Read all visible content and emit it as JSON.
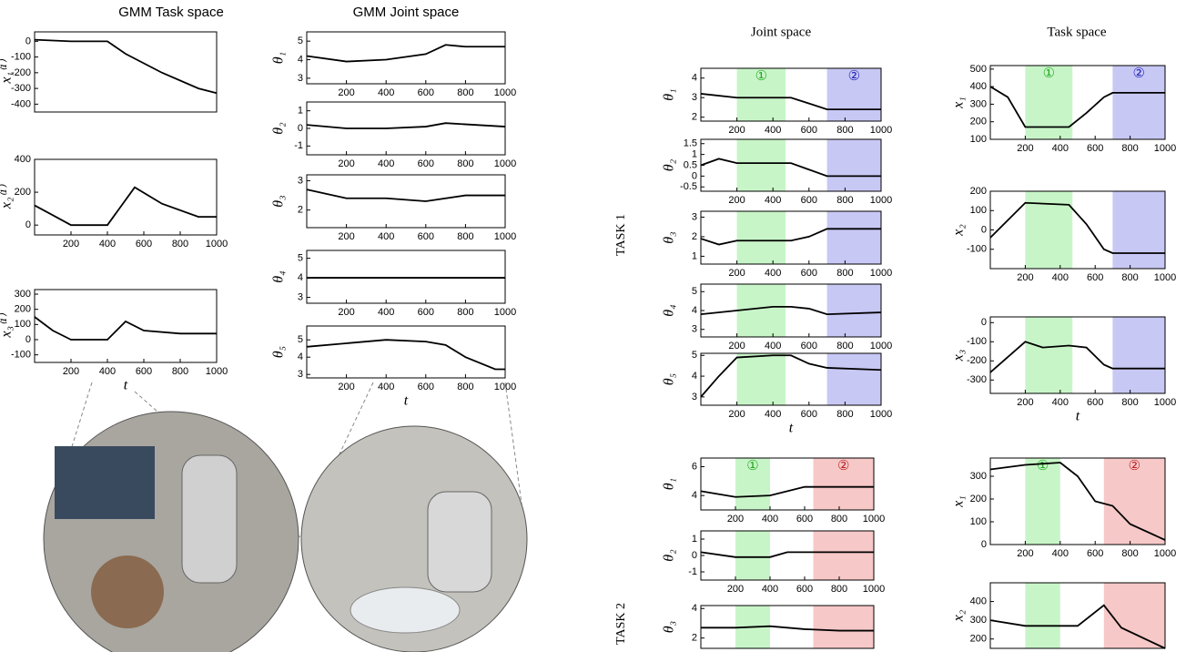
{
  "headings": [
    "GMM Task space",
    "GMM Joint space",
    "Joint space",
    "Task space",
    "TASK 1",
    "TASK 2"
  ],
  "chart_data": [
    {
      "type": "line",
      "ylabel": "x₁⁽¹⁾",
      "xlim": [
        0,
        1000
      ],
      "ylim": [
        -450,
        60
      ],
      "xticks": [],
      "yticks": [
        0,
        -100,
        -200,
        -300,
        -400
      ],
      "series": [
        {
          "color": "#000000",
          "x": [
            0,
            200,
            400,
            500,
            700,
            900,
            1000
          ],
          "values": [
            10,
            0,
            0,
            -80,
            -200,
            -300,
            -330
          ]
        }
      ]
    },
    {
      "type": "line",
      "ylabel": "x₂⁽¹⁾",
      "xlim": [
        0,
        1000
      ],
      "ylim": [
        -60,
        400
      ],
      "xticks": [
        200,
        400,
        600,
        800,
        1000
      ],
      "yticks": [
        0,
        200,
        400
      ],
      "series": [
        {
          "color": "#000000",
          "x": [
            0,
            100,
            200,
            400,
            550,
            700,
            900,
            1000
          ],
          "values": [
            120,
            60,
            0,
            0,
            230,
            130,
            50,
            50
          ]
        }
      ]
    },
    {
      "type": "line",
      "ylabel": "x₃⁽¹⁾",
      "xlabel": "t",
      "xlim": [
        0,
        1000
      ],
      "ylim": [
        -150,
        330
      ],
      "xticks": [
        200,
        400,
        600,
        800,
        1000
      ],
      "yticks": [
        -100,
        0,
        100,
        200,
        300
      ],
      "series": [
        {
          "color": "#000000",
          "x": [
            0,
            100,
            200,
            400,
            500,
            600,
            800,
            1000
          ],
          "values": [
            150,
            60,
            0,
            0,
            120,
            60,
            40,
            40
          ]
        }
      ]
    },
    {
      "type": "line",
      "ylabel": "θ₁",
      "xlim": [
        0,
        1000
      ],
      "ylim": [
        2.7,
        5.5
      ],
      "xticks": [
        200,
        400,
        600,
        800,
        1000
      ],
      "yticks": [
        3,
        4,
        5
      ],
      "series": [
        {
          "color": "#000000",
          "x": [
            0,
            200,
            400,
            600,
            700,
            800,
            1000
          ],
          "values": [
            4.2,
            3.9,
            4.0,
            4.3,
            4.8,
            4.7,
            4.7
          ]
        }
      ]
    },
    {
      "type": "line",
      "ylabel": "θ₂",
      "xlim": [
        0,
        1000
      ],
      "ylim": [
        -1.5,
        1.5
      ],
      "xticks": [
        200,
        400,
        600,
        800,
        1000
      ],
      "yticks": [
        -1,
        0,
        1
      ],
      "series": [
        {
          "color": "#000000",
          "x": [
            0,
            200,
            400,
            600,
            700,
            1000
          ],
          "values": [
            0.2,
            0.0,
            0.0,
            0.1,
            0.3,
            0.1
          ]
        }
      ]
    },
    {
      "type": "line",
      "ylabel": "θ₃",
      "xlim": [
        0,
        1000
      ],
      "ylim": [
        1.4,
        3.2
      ],
      "xticks": [
        200,
        400,
        600,
        800,
        1000
      ],
      "yticks": [
        2,
        3
      ],
      "series": [
        {
          "color": "#000000",
          "x": [
            0,
            200,
            400,
            600,
            800,
            1000
          ],
          "values": [
            2.7,
            2.4,
            2.4,
            2.3,
            2.5,
            2.5
          ]
        }
      ]
    },
    {
      "type": "line",
      "ylabel": "θ₄",
      "xlim": [
        0,
        1000
      ],
      "ylim": [
        2.7,
        5.4
      ],
      "xticks": [
        200,
        400,
        600,
        800,
        1000
      ],
      "yticks": [
        3,
        4,
        5
      ],
      "series": [
        {
          "color": "#000000",
          "x": [
            0,
            200,
            400,
            600,
            800,
            1000
          ],
          "values": [
            4.0,
            4.0,
            4.0,
            4.0,
            4.0,
            4.0
          ]
        }
      ]
    },
    {
      "type": "line",
      "ylabel": "θ₅",
      "xlabel": "t",
      "xlim": [
        0,
        1000
      ],
      "ylim": [
        2.8,
        5.8
      ],
      "xticks": [
        200,
        400,
        600,
        800,
        1000
      ],
      "yticks": [
        3,
        4,
        5
      ],
      "series": [
        {
          "color": "#000000",
          "x": [
            0,
            200,
            400,
            600,
            700,
            800,
            950,
            1000
          ],
          "values": [
            4.6,
            4.8,
            5.0,
            4.9,
            4.7,
            4.0,
            3.3,
            3.3
          ]
        }
      ]
    },
    {
      "type": "line",
      "ylabel": "θ₁",
      "xlim": [
        0,
        1000
      ],
      "ylim": [
        1.8,
        4.5
      ],
      "xticks": [
        200,
        400,
        600,
        800,
        1000
      ],
      "yticks": [
        2,
        3,
        4
      ],
      "regions": [
        {
          "x": [
            200,
            470
          ],
          "color": "#c8f5c8",
          "label": "①",
          "label_color": "#22aa22"
        },
        {
          "x": [
            700,
            1000
          ],
          "color": "#c8c8f5",
          "label": "②",
          "label_color": "#2222bb"
        }
      ],
      "series": [
        {
          "color": "#000000",
          "x": [
            0,
            200,
            400,
            500,
            600,
            700,
            1000
          ],
          "values": [
            3.2,
            3.0,
            3.0,
            3.0,
            2.7,
            2.4,
            2.4
          ]
        }
      ]
    },
    {
      "type": "line",
      "ylabel": "θ₂",
      "xlim": [
        0,
        1000
      ],
      "ylim": [
        -0.7,
        1.7
      ],
      "xticks": [
        200,
        400,
        600,
        800,
        1000
      ],
      "yticks": [
        -0.5,
        0,
        0.5,
        1,
        1.5
      ],
      "regions": [
        {
          "x": [
            200,
            470
          ],
          "color": "#c8f5c8"
        },
        {
          "x": [
            700,
            1000
          ],
          "color": "#c8c8f5"
        }
      ],
      "series": [
        {
          "color": "#000000",
          "x": [
            0,
            100,
            200,
            400,
            500,
            600,
            700,
            1000
          ],
          "values": [
            0.5,
            0.8,
            0.6,
            0.6,
            0.6,
            0.3,
            0.0,
            0.0
          ]
        }
      ]
    },
    {
      "type": "line",
      "ylabel": "θ₃",
      "xlim": [
        0,
        1000
      ],
      "ylim": [
        0.6,
        3.3
      ],
      "xticks": [
        200,
        400,
        600,
        800,
        1000
      ],
      "yticks": [
        1,
        2,
        3
      ],
      "regions": [
        {
          "x": [
            200,
            470
          ],
          "color": "#c8f5c8"
        },
        {
          "x": [
            700,
            1000
          ],
          "color": "#c8c8f5"
        }
      ],
      "series": [
        {
          "color": "#000000",
          "x": [
            0,
            100,
            200,
            400,
            500,
            600,
            700,
            1000
          ],
          "values": [
            1.9,
            1.6,
            1.8,
            1.8,
            1.8,
            2.0,
            2.4,
            2.4
          ]
        }
      ]
    },
    {
      "type": "line",
      "ylabel": "θ₄",
      "xlim": [
        0,
        1000
      ],
      "ylim": [
        2.6,
        5.4
      ],
      "xticks": [
        200,
        400,
        600,
        800,
        1000
      ],
      "yticks": [
        3,
        4,
        5
      ],
      "regions": [
        {
          "x": [
            200,
            470
          ],
          "color": "#c8f5c8"
        },
        {
          "x": [
            700,
            1000
          ],
          "color": "#c8c8f5"
        }
      ],
      "series": [
        {
          "color": "#000000",
          "x": [
            0,
            200,
            400,
            500,
            600,
            700,
            1000
          ],
          "values": [
            3.8,
            4.0,
            4.2,
            4.2,
            4.1,
            3.8,
            3.9
          ]
        }
      ]
    },
    {
      "type": "line",
      "ylabel": "θ₅",
      "xlabel": "t",
      "xlim": [
        0,
        1000
      ],
      "ylim": [
        2.6,
        5.1
      ],
      "xticks": [
        200,
        400,
        600,
        800,
        1000
      ],
      "yticks": [
        3,
        4,
        5
      ],
      "regions": [
        {
          "x": [
            200,
            470
          ],
          "color": "#c8f5c8"
        },
        {
          "x": [
            700,
            1000
          ],
          "color": "#c8c8f5"
        }
      ],
      "series": [
        {
          "color": "#000000",
          "x": [
            0,
            100,
            200,
            400,
            500,
            600,
            700,
            1000
          ],
          "values": [
            3.0,
            4.0,
            4.9,
            5.0,
            5.0,
            4.6,
            4.4,
            4.3
          ]
        }
      ]
    },
    {
      "type": "line",
      "ylabel": "x₁",
      "xlim": [
        0,
        1000
      ],
      "ylim": [
        100,
        520
      ],
      "xticks": [
        200,
        400,
        600,
        800,
        1000
      ],
      "yticks": [
        100,
        200,
        300,
        400,
        500
      ],
      "regions": [
        {
          "x": [
            200,
            470
          ],
          "color": "#c8f5c8",
          "label": "①",
          "label_color": "#22aa22"
        },
        {
          "x": [
            700,
            1000
          ],
          "color": "#c8c8f5",
          "label": "②",
          "label_color": "#2222bb"
        }
      ],
      "series": [
        {
          "color": "#000000",
          "x": [
            0,
            100,
            200,
            450,
            550,
            650,
            700,
            1000
          ],
          "values": [
            400,
            340,
            170,
            170,
            250,
            340,
            365,
            365
          ]
        }
      ]
    },
    {
      "type": "line",
      "ylabel": "x₂",
      "xlim": [
        0,
        1000
      ],
      "ylim": [
        -200,
        200
      ],
      "xticks": [
        200,
        400,
        600,
        800,
        1000
      ],
      "yticks": [
        -100,
        0,
        100,
        200
      ],
      "regions": [
        {
          "x": [
            200,
            470
          ],
          "color": "#c8f5c8"
        },
        {
          "x": [
            700,
            1000
          ],
          "color": "#c8c8f5"
        }
      ],
      "series": [
        {
          "color": "#000000",
          "x": [
            0,
            200,
            450,
            550,
            650,
            700,
            1000
          ],
          "values": [
            -40,
            140,
            130,
            30,
            -100,
            -120,
            -120
          ]
        }
      ]
    },
    {
      "type": "line",
      "ylabel": "x₃",
      "xlabel": "t",
      "xlim": [
        0,
        1000
      ],
      "ylim": [
        -370,
        30
      ],
      "xticks": [
        200,
        400,
        600,
        800,
        1000
      ],
      "yticks": [
        -300,
        -200,
        -100,
        0
      ],
      "regions": [
        {
          "x": [
            200,
            470
          ],
          "color": "#c8f5c8"
        },
        {
          "x": [
            700,
            1000
          ],
          "color": "#c8c8f5"
        }
      ],
      "series": [
        {
          "color": "#000000",
          "x": [
            0,
            200,
            300,
            450,
            550,
            650,
            700,
            1000
          ],
          "values": [
            -260,
            -100,
            -130,
            -120,
            -130,
            -220,
            -240,
            -240
          ]
        }
      ]
    },
    {
      "type": "line",
      "ylabel": "θ₁",
      "xlim": [
        0,
        1000
      ],
      "ylim": [
        3,
        6.6
      ],
      "xticks": [
        200,
        400,
        600,
        800,
        1000
      ],
      "yticks": [
        4,
        6
      ],
      "regions": [
        {
          "x": [
            200,
            400
          ],
          "color": "#c8f5c8",
          "label": "①",
          "label_color": "#22aa22"
        },
        {
          "x": [
            650,
            1000
          ],
          "color": "#f7c8c8",
          "label": "②",
          "label_color": "#bb2222"
        }
      ],
      "series": [
        {
          "color": "#000000",
          "x": [
            0,
            200,
            400,
            600,
            800,
            1000
          ],
          "values": [
            4.3,
            3.9,
            4.0,
            4.6,
            4.6,
            4.6
          ]
        }
      ]
    },
    {
      "type": "line",
      "ylabel": "θ₂",
      "xlim": [
        0,
        1000
      ],
      "ylim": [
        -1.5,
        1.5
      ],
      "xticks": [
        200,
        400,
        600,
        800,
        1000
      ],
      "yticks": [
        -1,
        0,
        1
      ],
      "regions": [
        {
          "x": [
            200,
            400
          ],
          "color": "#c8f5c8"
        },
        {
          "x": [
            650,
            1000
          ],
          "color": "#f7c8c8"
        }
      ],
      "series": [
        {
          "color": "#000000",
          "x": [
            0,
            200,
            400,
            500,
            1000
          ],
          "values": [
            0.2,
            -0.1,
            -0.1,
            0.2,
            0.2
          ]
        }
      ]
    },
    {
      "type": "line",
      "ylabel": "θ₃",
      "xlim": [
        0,
        1000
      ],
      "ylim": [
        1.3,
        4.2
      ],
      "xticks": [],
      "yticks": [
        2,
        4
      ],
      "regions": [
        {
          "x": [
            200,
            400
          ],
          "color": "#c8f5c8"
        },
        {
          "x": [
            650,
            1000
          ],
          "color": "#f7c8c8"
        }
      ],
      "series": [
        {
          "color": "#000000",
          "x": [
            0,
            200,
            400,
            600,
            800,
            1000
          ],
          "values": [
            2.7,
            2.7,
            2.8,
            2.6,
            2.5,
            2.5
          ]
        }
      ]
    },
    {
      "type": "line",
      "ylabel": "x₁",
      "xlim": [
        0,
        1000
      ],
      "ylim": [
        0,
        380
      ],
      "xticks": [
        200,
        400,
        600,
        800,
        1000
      ],
      "yticks": [
        0,
        100,
        200,
        300
      ],
      "regions": [
        {
          "x": [
            200,
            400
          ],
          "color": "#c8f5c8",
          "label": "①",
          "label_color": "#22aa22"
        },
        {
          "x": [
            650,
            1000
          ],
          "color": "#f7c8c8",
          "label": "②",
          "label_color": "#bb2222"
        }
      ],
      "series": [
        {
          "color": "#000000",
          "x": [
            0,
            200,
            400,
            500,
            600,
            700,
            800,
            1000
          ],
          "values": [
            330,
            350,
            360,
            300,
            190,
            170,
            90,
            20
          ]
        }
      ]
    },
    {
      "type": "line",
      "ylabel": "x₂",
      "xlim": [
        0,
        1000
      ],
      "ylim": [
        150,
        500
      ],
      "xticks": [],
      "yticks": [
        200,
        300,
        400
      ],
      "regions": [
        {
          "x": [
            200,
            400
          ],
          "color": "#c8f5c8"
        },
        {
          "x": [
            650,
            1000
          ],
          "color": "#f7c8c8"
        }
      ],
      "series": [
        {
          "color": "#000000",
          "x": [
            0,
            200,
            400,
            500,
            650,
            750,
            1000
          ],
          "values": [
            300,
            270,
            270,
            270,
            380,
            260,
            150
          ]
        }
      ]
    }
  ]
}
